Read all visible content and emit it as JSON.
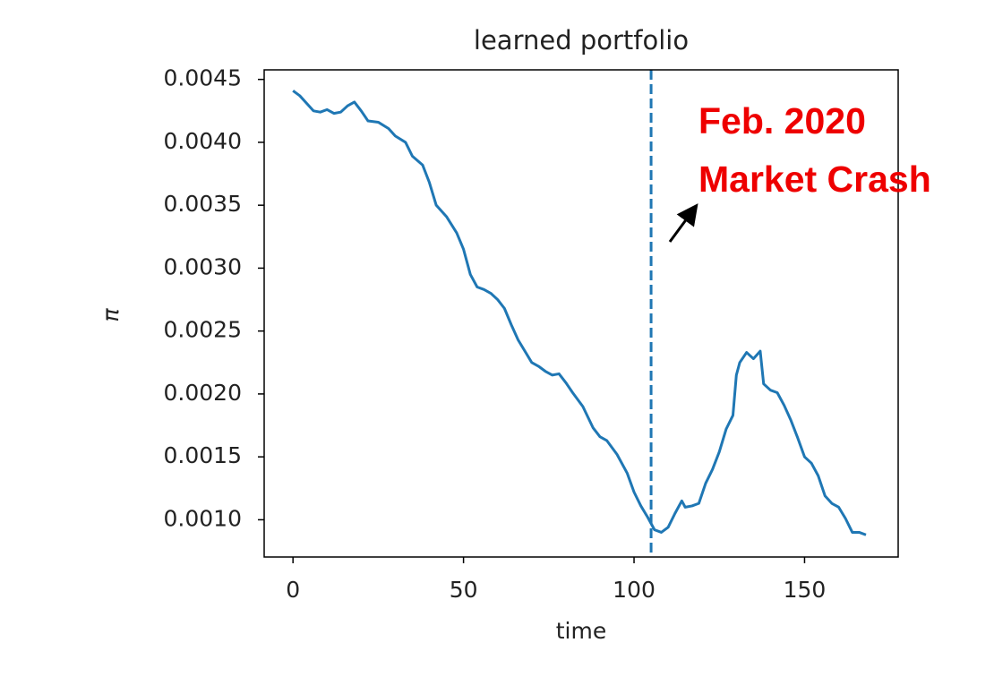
{
  "chart_data": {
    "type": "line",
    "title": "learned portfolio",
    "xlabel": "time",
    "ylabel": "π",
    "x": [
      0,
      2,
      4,
      6,
      8,
      10,
      12,
      14,
      16,
      18,
      20,
      22,
      25,
      28,
      30,
      33,
      35,
      38,
      40,
      42,
      45,
      48,
      50,
      52,
      54,
      56,
      58,
      60,
      62,
      64,
      66,
      68,
      70,
      72,
      74,
      76,
      78,
      80,
      82,
      85,
      88,
      90,
      92,
      95,
      98,
      100,
      102,
      104,
      106,
      108,
      110,
      112,
      114,
      115,
      117,
      119,
      121,
      123,
      125,
      127,
      129,
      130,
      131,
      133,
      135,
      137,
      138,
      140,
      142,
      144,
      146,
      148,
      150,
      152,
      154,
      156,
      158,
      160,
      162,
      164,
      166,
      168
    ],
    "values": [
      0.00441,
      0.00437,
      0.00431,
      0.00425,
      0.00424,
      0.00426,
      0.00423,
      0.00424,
      0.00429,
      0.00432,
      0.00425,
      0.00417,
      0.00416,
      0.00411,
      0.00405,
      0.004,
      0.00389,
      0.00382,
      0.00368,
      0.0035,
      0.00341,
      0.00328,
      0.00315,
      0.00295,
      0.00285,
      0.00283,
      0.0028,
      0.00275,
      0.00268,
      0.00255,
      0.00243,
      0.00234,
      0.00225,
      0.00222,
      0.00218,
      0.00215,
      0.00216,
      0.00209,
      0.00201,
      0.0019,
      0.00173,
      0.00166,
      0.00163,
      0.00152,
      0.00137,
      0.00122,
      0.00111,
      0.00102,
      0.00092,
      0.0009,
      0.00094,
      0.00105,
      0.00115,
      0.0011,
      0.00111,
      0.00113,
      0.00129,
      0.0014,
      0.00154,
      0.00172,
      0.00183,
      0.00215,
      0.00225,
      0.00233,
      0.00228,
      0.00234,
      0.00208,
      0.00203,
      0.00201,
      0.00191,
      0.00179,
      0.00165,
      0.0015,
      0.00145,
      0.00135,
      0.00119,
      0.00113,
      0.0011,
      0.00101,
      0.0009,
      0.0009,
      0.00088
    ],
    "color": "#1f77b4",
    "xlim": [
      -8.45,
      177.45
    ],
    "xticks": [
      0,
      50,
      100,
      150
    ],
    "ylim": [
      0.000704,
      0.004576
    ],
    "yticks": [
      {
        "value": 0.001,
        "label": "0.0010"
      },
      0.0015,
      {
        "value": 0.002,
        "label": "0.0020"
      },
      0.0025,
      {
        "value": 0.003,
        "label": "0.0030"
      },
      0.0035,
      {
        "value": 0.004,
        "label": "0.0040"
      },
      0.0045
    ],
    "vline": {
      "x": 105,
      "color": "#1f77b4"
    },
    "annotation": {
      "lines": [
        "Feb. 2020",
        "Market Crash"
      ],
      "color": "#ee0000"
    }
  }
}
